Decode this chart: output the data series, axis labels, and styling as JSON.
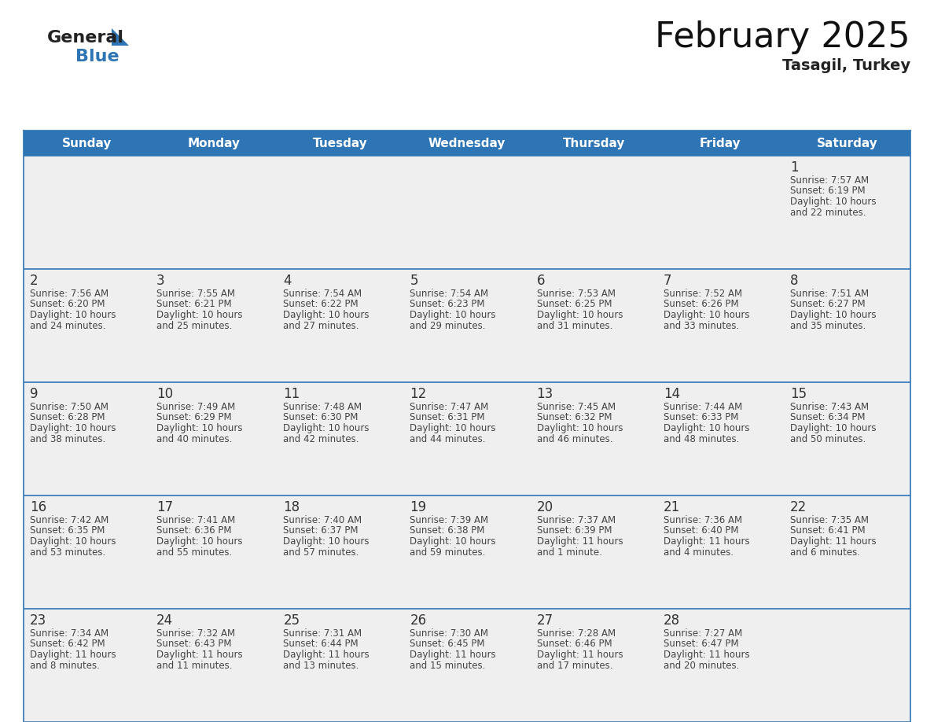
{
  "title": "February 2025",
  "subtitle": "Tasagil, Turkey",
  "header_color": "#2E75B6",
  "header_text_color": "#FFFFFF",
  "bg_color": "#FFFFFF",
  "cell_bg": "#EFEFEF",
  "cell_bg_white": "#FFFFFF",
  "border_color": "#2E75B6",
  "day_number_color": "#333333",
  "info_color": "#444444",
  "days_of_week": [
    "Sunday",
    "Monday",
    "Tuesday",
    "Wednesday",
    "Thursday",
    "Friday",
    "Saturday"
  ],
  "calendar_data": [
    [
      null,
      null,
      null,
      null,
      null,
      null,
      {
        "day": "1",
        "sunrise": "7:57 AM",
        "sunset": "6:19 PM",
        "daylight": "10 hours\nand 22 minutes."
      }
    ],
    [
      {
        "day": "2",
        "sunrise": "7:56 AM",
        "sunset": "6:20 PM",
        "daylight": "10 hours\nand 24 minutes."
      },
      {
        "day": "3",
        "sunrise": "7:55 AM",
        "sunset": "6:21 PM",
        "daylight": "10 hours\nand 25 minutes."
      },
      {
        "day": "4",
        "sunrise": "7:54 AM",
        "sunset": "6:22 PM",
        "daylight": "10 hours\nand 27 minutes."
      },
      {
        "day": "5",
        "sunrise": "7:54 AM",
        "sunset": "6:23 PM",
        "daylight": "10 hours\nand 29 minutes."
      },
      {
        "day": "6",
        "sunrise": "7:53 AM",
        "sunset": "6:25 PM",
        "daylight": "10 hours\nand 31 minutes."
      },
      {
        "day": "7",
        "sunrise": "7:52 AM",
        "sunset": "6:26 PM",
        "daylight": "10 hours\nand 33 minutes."
      },
      {
        "day": "8",
        "sunrise": "7:51 AM",
        "sunset": "6:27 PM",
        "daylight": "10 hours\nand 35 minutes."
      }
    ],
    [
      {
        "day": "9",
        "sunrise": "7:50 AM",
        "sunset": "6:28 PM",
        "daylight": "10 hours\nand 38 minutes."
      },
      {
        "day": "10",
        "sunrise": "7:49 AM",
        "sunset": "6:29 PM",
        "daylight": "10 hours\nand 40 minutes."
      },
      {
        "day": "11",
        "sunrise": "7:48 AM",
        "sunset": "6:30 PM",
        "daylight": "10 hours\nand 42 minutes."
      },
      {
        "day": "12",
        "sunrise": "7:47 AM",
        "sunset": "6:31 PM",
        "daylight": "10 hours\nand 44 minutes."
      },
      {
        "day": "13",
        "sunrise": "7:45 AM",
        "sunset": "6:32 PM",
        "daylight": "10 hours\nand 46 minutes."
      },
      {
        "day": "14",
        "sunrise": "7:44 AM",
        "sunset": "6:33 PM",
        "daylight": "10 hours\nand 48 minutes."
      },
      {
        "day": "15",
        "sunrise": "7:43 AM",
        "sunset": "6:34 PM",
        "daylight": "10 hours\nand 50 minutes."
      }
    ],
    [
      {
        "day": "16",
        "sunrise": "7:42 AM",
        "sunset": "6:35 PM",
        "daylight": "10 hours\nand 53 minutes."
      },
      {
        "day": "17",
        "sunrise": "7:41 AM",
        "sunset": "6:36 PM",
        "daylight": "10 hours\nand 55 minutes."
      },
      {
        "day": "18",
        "sunrise": "7:40 AM",
        "sunset": "6:37 PM",
        "daylight": "10 hours\nand 57 minutes."
      },
      {
        "day": "19",
        "sunrise": "7:39 AM",
        "sunset": "6:38 PM",
        "daylight": "10 hours\nand 59 minutes."
      },
      {
        "day": "20",
        "sunrise": "7:37 AM",
        "sunset": "6:39 PM",
        "daylight": "11 hours\nand 1 minute."
      },
      {
        "day": "21",
        "sunrise": "7:36 AM",
        "sunset": "6:40 PM",
        "daylight": "11 hours\nand 4 minutes."
      },
      {
        "day": "22",
        "sunrise": "7:35 AM",
        "sunset": "6:41 PM",
        "daylight": "11 hours\nand 6 minutes."
      }
    ],
    [
      {
        "day": "23",
        "sunrise": "7:34 AM",
        "sunset": "6:42 PM",
        "daylight": "11 hours\nand 8 minutes."
      },
      {
        "day": "24",
        "sunrise": "7:32 AM",
        "sunset": "6:43 PM",
        "daylight": "11 hours\nand 11 minutes."
      },
      {
        "day": "25",
        "sunrise": "7:31 AM",
        "sunset": "6:44 PM",
        "daylight": "11 hours\nand 13 minutes."
      },
      {
        "day": "26",
        "sunrise": "7:30 AM",
        "sunset": "6:45 PM",
        "daylight": "11 hours\nand 15 minutes."
      },
      {
        "day": "27",
        "sunrise": "7:28 AM",
        "sunset": "6:46 PM",
        "daylight": "11 hours\nand 17 minutes."
      },
      {
        "day": "28",
        "sunrise": "7:27 AM",
        "sunset": "6:47 PM",
        "daylight": "11 hours\nand 20 minutes."
      },
      null
    ]
  ],
  "logo_general_color": "#222222",
  "logo_blue_color": "#2E75B6",
  "logo_triangle_color": "#2E75B6",
  "title_fontsize": 32,
  "subtitle_fontsize": 14,
  "header_fontsize": 11,
  "day_num_fontsize": 12,
  "info_fontsize": 8.5
}
